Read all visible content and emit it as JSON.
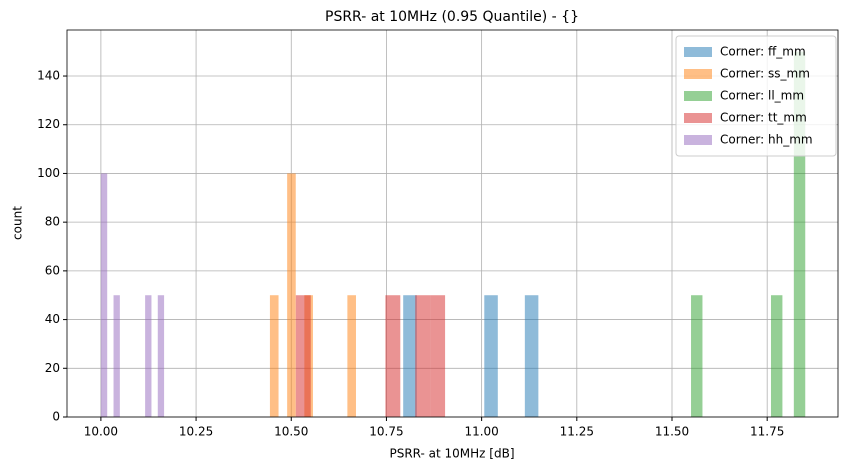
{
  "chart_data": {
    "type": "histogram",
    "title": "PSRR- at 10MHz (0.95 Quantile) - {}",
    "x_label": "PSRR- at 10MHz [dB]",
    "y_label": "count",
    "xlim": [
      9.911,
      11.936
    ],
    "ylim": [
      0,
      158.9
    ],
    "xticks": [
      {
        "value": 10,
        "label": "10.00"
      },
      10.25,
      {
        "value": 10.5,
        "label": "10.50"
      },
      10.75,
      {
        "value": 11,
        "label": "11.00"
      },
      11.25,
      {
        "value": 11.5,
        "label": "11.50"
      },
      11.75
    ],
    "yticks": [
      0,
      20,
      40,
      60,
      80,
      100,
      120,
      140
    ],
    "grid": true,
    "legend": "upper right",
    "opacity": 0.5,
    "series": [
      {
        "name": "Corner: ff_mm",
        "color": "#1f77b4",
        "bins": [
          10.794,
          10.8295,
          10.865,
          10.9005,
          10.936,
          10.9715,
          11.007,
          11.0425,
          11.078,
          11.1135,
          11.149
        ],
        "values": [
          50,
          0,
          0,
          0,
          0,
          0,
          50,
          0,
          0,
          50
        ]
      },
      {
        "name": "Corner: ss_mm",
        "color": "#ff7f0e",
        "bins": [
          10.444,
          10.4666,
          10.4892,
          10.5118,
          10.5344,
          10.557,
          10.5796,
          10.6022,
          10.6248,
          10.6474,
          10.67
        ],
        "values": [
          50,
          0,
          100,
          0,
          50,
          0,
          0,
          0,
          0,
          50
        ]
      },
      {
        "name": "Corner: ll_mm",
        "color": "#2ca02c",
        "bins": [
          11.55,
          11.58,
          11.61,
          11.64,
          11.67,
          11.7,
          11.73,
          11.76,
          11.79,
          11.82,
          11.85
        ],
        "values": [
          50,
          0,
          0,
          0,
          0,
          0,
          0,
          50,
          0,
          150
        ]
      },
      {
        "name": "Corner: tt_mm",
        "color": "#d62728",
        "bins": [
          10.512,
          10.5512,
          10.5904,
          10.6296,
          10.6688,
          10.708,
          10.7472,
          10.7864,
          10.8256,
          10.8648,
          10.904
        ],
        "values": [
          50,
          0,
          0,
          0,
          0,
          0,
          50,
          0,
          50,
          50
        ]
      },
      {
        "name": "Corner: hh_mm",
        "color": "#9467bd",
        "bins": [
          10.0,
          10.0166,
          10.0332,
          10.0498,
          10.0664,
          10.083,
          10.0996,
          10.1162,
          10.1328,
          10.1494,
          10.166
        ],
        "values": [
          100,
          0,
          50,
          0,
          0,
          0,
          0,
          50,
          0,
          50
        ]
      }
    ]
  }
}
